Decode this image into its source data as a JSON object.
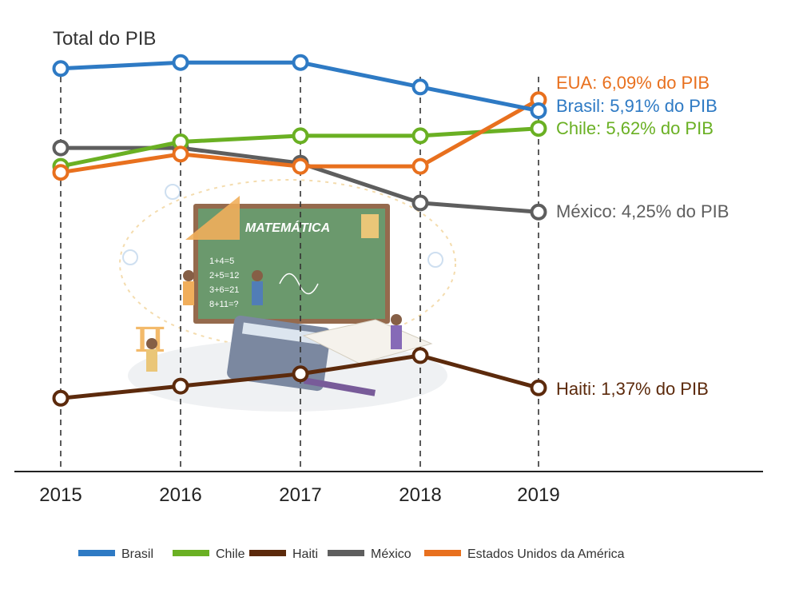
{
  "chart_data": {
    "type": "line",
    "title": "Total do PIB",
    "xlabel": "",
    "ylabel": "",
    "categories": [
      "2015",
      "2016",
      "2017",
      "2018",
      "2019"
    ],
    "ylim": [
      0,
      7.2
    ],
    "grid": "vertical dashed lines at each year",
    "legend_placement": "bottom",
    "series": [
      {
        "name": "Brasil",
        "color": "#2e7ac4",
        "values": [
          6.6,
          6.7,
          6.7,
          6.3,
          5.91
        ],
        "end_label": "Brasil: 5,91% do PIB"
      },
      {
        "name": "Chile",
        "color": "#6ab023",
        "values": [
          5.0,
          5.4,
          5.5,
          5.5,
          5.62
        ],
        "end_label": "Chile: 5,62% do PIB"
      },
      {
        "name": "Haiti",
        "color": "#5c2a0c",
        "values": [
          1.2,
          1.4,
          1.6,
          1.9,
          1.37
        ],
        "end_label": "Haiti: 1,37% do PIB"
      },
      {
        "name": "México",
        "color": "#5e5e5e",
        "values": [
          5.3,
          5.3,
          5.05,
          4.4,
          4.25
        ],
        "end_label": "México: 4,25% do PIB"
      },
      {
        "name": "Estados Unidos da América",
        "color": "#e8701e",
        "values": [
          4.9,
          5.2,
          5.0,
          5.0,
          6.09
        ],
        "end_label": "EUA: 6,09% do PIB"
      }
    ]
  },
  "background_illustration": {
    "icon": "math-classroom-illustration",
    "board_text": "MATEMÁTICA",
    "board_lines": [
      "1+4=5",
      "2+5=12",
      "3+6=21",
      "8+11=?"
    ]
  }
}
